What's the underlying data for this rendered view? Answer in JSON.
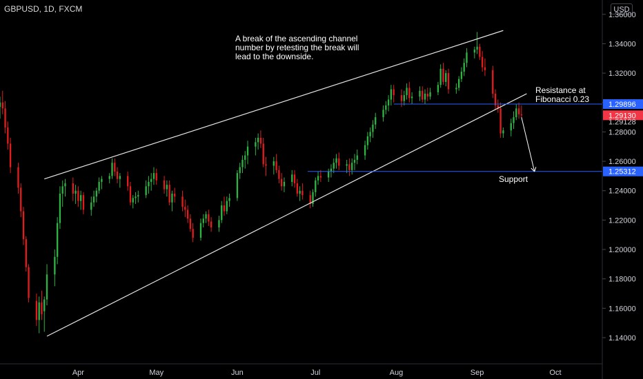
{
  "header": {
    "symbol": "GBPUSD, 1D, FXCM",
    "currency": "USD"
  },
  "chart_data": {
    "type": "candlestick",
    "x_tick_labels": [
      "Apr",
      "May",
      "Jun",
      "Jul",
      "Aug",
      "Sep",
      "Oct"
    ],
    "y_ticks": [
      1.14,
      1.16,
      1.18,
      1.2,
      1.22,
      1.24,
      1.26,
      1.28,
      1.3,
      1.32,
      1.34,
      1.36
    ],
    "y_tick_labels": [
      "1.14000",
      "1.16000",
      "1.18000",
      "1.20000",
      "1.22000",
      "1.24000",
      "1.26000",
      "1.28000",
      "1.30000",
      "1.32000",
      "1.34000",
      "1.36000"
    ],
    "ylim": [
      1.125,
      1.366
    ],
    "xlim": [
      "2020-03-02",
      "2020-10-19"
    ],
    "price_levels": [
      {
        "label": "1.29896",
        "value": 1.29896,
        "color": "#2962ff"
      },
      {
        "label": "1.29130",
        "value": 1.2913,
        "color": "#f23645"
      },
      {
        "label": "1.29128",
        "value": 1.29128,
        "color": ""
      },
      {
        "label": "1.25312",
        "value": 1.25312,
        "color": "#2962ff"
      }
    ],
    "lines": [
      {
        "name": "channel-top",
        "from": [
          "2020-03-19",
          1.248
        ],
        "to": [
          "2020-09-11",
          1.349
        ]
      },
      {
        "name": "channel-bottom",
        "from": [
          "2020-03-20",
          1.141
        ],
        "to": [
          "2020-09-20",
          1.306
        ]
      },
      {
        "name": "resistance",
        "from": [
          "2020-07-31",
          1.29896
        ],
        "to": [
          "2020-10-19",
          1.29896
        ]
      },
      {
        "name": "support",
        "from": [
          "2020-06-28",
          1.25312
        ],
        "to": [
          "2020-10-19",
          1.25312
        ]
      }
    ],
    "arrow": {
      "from": [
        "2020-09-18",
        1.29
      ],
      "to": [
        "2020-09-23",
        1.253
      ]
    },
    "annotations": [
      {
        "name": "channel-note",
        "text": "A break of the ascending channel\nnumber by retesting the break will\nlead to the downside."
      },
      {
        "name": "resistance-note",
        "text": "Resistance at\nFibonacci 0.23"
      },
      {
        "name": "support-note",
        "text": "Support"
      }
    ],
    "candles": [
      [
        "2020-03-02",
        1.297,
        1.304,
        1.289,
        1.3
      ],
      [
        "2020-03-03",
        1.3,
        1.308,
        1.292,
        1.296
      ],
      [
        "2020-03-04",
        1.296,
        1.301,
        1.279,
        1.283
      ],
      [
        "2020-03-05",
        1.283,
        1.287,
        1.268,
        1.272
      ],
      [
        "2020-03-06",
        1.272,
        1.276,
        1.252,
        1.256
      ],
      [
        "2020-03-09",
        1.256,
        1.259,
        1.238,
        1.242
      ],
      [
        "2020-03-10",
        1.242,
        1.245,
        1.222,
        1.226
      ],
      [
        "2020-03-11",
        1.226,
        1.229,
        1.203,
        1.207
      ],
      [
        "2020-03-12",
        1.207,
        1.209,
        1.185,
        1.188
      ],
      [
        "2020-03-13",
        1.188,
        1.19,
        1.164,
        1.167
      ],
      [
        "2020-03-16",
        1.165,
        1.17,
        1.148,
        1.152
      ],
      [
        "2020-03-17",
        1.152,
        1.168,
        1.143,
        1.164
      ],
      [
        "2020-03-18",
        1.164,
        1.172,
        1.152,
        1.156
      ],
      [
        "2020-03-19",
        1.158,
        1.168,
        1.144,
        1.166
      ],
      [
        "2020-03-20",
        1.166,
        1.19,
        1.162,
        1.183
      ],
      [
        "2020-03-23",
        1.183,
        1.2,
        1.175,
        1.195
      ],
      [
        "2020-03-24",
        1.195,
        1.222,
        1.19,
        1.218
      ],
      [
        "2020-03-25",
        1.218,
        1.243,
        1.214,
        1.238
      ],
      [
        "2020-03-26",
        1.238,
        1.247,
        1.229,
        1.243
      ],
      [
        "2020-03-27",
        1.243,
        1.248,
        1.236,
        1.245
      ],
      [
        "2020-03-30",
        1.245,
        1.249,
        1.233,
        1.238
      ],
      [
        "2020-03-31",
        1.238,
        1.244,
        1.231,
        1.24
      ],
      [
        "2020-04-01",
        1.24,
        1.243,
        1.229,
        1.233
      ],
      [
        "2020-04-02",
        1.233,
        1.24,
        1.227,
        1.237
      ],
      [
        "2020-04-03",
        1.237,
        1.239,
        1.224,
        1.227
      ],
      [
        "2020-04-06",
        1.227,
        1.236,
        1.223,
        1.232
      ],
      [
        "2020-04-07",
        1.232,
        1.24,
        1.229,
        1.236
      ],
      [
        "2020-04-08",
        1.236,
        1.242,
        1.232,
        1.24
      ],
      [
        "2020-04-09",
        1.24,
        1.249,
        1.238,
        1.246
      ],
      [
        "2020-04-10",
        1.246,
        1.25,
        1.241,
        1.248
      ],
      [
        "2020-04-13",
        1.248,
        1.252,
        1.245,
        1.25
      ],
      [
        "2020-04-14",
        1.25,
        1.262,
        1.248,
        1.259
      ],
      [
        "2020-04-15",
        1.259,
        1.262,
        1.25,
        1.253
      ],
      [
        "2020-04-16",
        1.253,
        1.256,
        1.245,
        1.248
      ],
      [
        "2020-04-17",
        1.248,
        1.252,
        1.242,
        1.25
      ],
      [
        "2020-04-20",
        1.25,
        1.253,
        1.24,
        1.243
      ],
      [
        "2020-04-21",
        1.243,
        1.246,
        1.23,
        1.232
      ],
      [
        "2020-04-22",
        1.232,
        1.237,
        1.228,
        1.235
      ],
      [
        "2020-04-23",
        1.235,
        1.239,
        1.231,
        1.236
      ],
      [
        "2020-04-24",
        1.236,
        1.24,
        1.232,
        1.237
      ],
      [
        "2020-04-27",
        1.237,
        1.247,
        1.235,
        1.243
      ],
      [
        "2020-04-28",
        1.243,
        1.25,
        1.238,
        1.246
      ],
      [
        "2020-04-29",
        1.246,
        1.252,
        1.24,
        1.248
      ],
      [
        "2020-04-30",
        1.248,
        1.256,
        1.244,
        1.252
      ],
      [
        "2020-05-01",
        1.252,
        1.255,
        1.244,
        1.247
      ],
      [
        "2020-05-04",
        1.247,
        1.25,
        1.238,
        1.241
      ],
      [
        "2020-05-05",
        1.241,
        1.247,
        1.236,
        1.244
      ],
      [
        "2020-05-06",
        1.244,
        1.247,
        1.23,
        1.232
      ],
      [
        "2020-05-07",
        1.232,
        1.24,
        1.226,
        1.238
      ],
      [
        "2020-05-08",
        1.238,
        1.242,
        1.232,
        1.236
      ],
      [
        "2020-05-11",
        1.236,
        1.24,
        1.226,
        1.229
      ],
      [
        "2020-05-12",
        1.229,
        1.234,
        1.222,
        1.227
      ],
      [
        "2020-05-13",
        1.227,
        1.23,
        1.218,
        1.221
      ],
      [
        "2020-05-14",
        1.221,
        1.224,
        1.212,
        1.214
      ],
      [
        "2020-05-15",
        1.214,
        1.218,
        1.205,
        1.208
      ],
      [
        "2020-05-18",
        1.208,
        1.221,
        1.206,
        1.218
      ],
      [
        "2020-05-19",
        1.218,
        1.224,
        1.215,
        1.221
      ],
      [
        "2020-05-20",
        1.221,
        1.226,
        1.218,
        1.224
      ],
      [
        "2020-05-21",
        1.224,
        1.227,
        1.216,
        1.219
      ],
      [
        "2020-05-22",
        1.219,
        1.222,
        1.212,
        1.215
      ],
      [
        "2020-05-25",
        1.215,
        1.223,
        1.212,
        1.22
      ],
      [
        "2020-05-26",
        1.22,
        1.233,
        1.218,
        1.23
      ],
      [
        "2020-05-27",
        1.23,
        1.236,
        1.223,
        1.226
      ],
      [
        "2020-05-28",
        1.226,
        1.236,
        1.224,
        1.233
      ],
      [
        "2020-05-29",
        1.233,
        1.238,
        1.229,
        1.235
      ],
      [
        "2020-06-01",
        1.235,
        1.254,
        1.233,
        1.252
      ],
      [
        "2020-06-02",
        1.252,
        1.259,
        1.248,
        1.256
      ],
      [
        "2020-06-03",
        1.256,
        1.264,
        1.252,
        1.261
      ],
      [
        "2020-06-04",
        1.261,
        1.267,
        1.255,
        1.264
      ],
      [
        "2020-06-05",
        1.264,
        1.274,
        1.258,
        1.27
      ],
      [
        "2020-06-08",
        1.27,
        1.276,
        1.264,
        1.273
      ],
      [
        "2020-06-09",
        1.273,
        1.279,
        1.268,
        1.276
      ],
      [
        "2020-06-10",
        1.276,
        1.281,
        1.269,
        1.272
      ],
      [
        "2020-06-11",
        1.272,
        1.276,
        1.256,
        1.258
      ],
      [
        "2020-06-12",
        1.258,
        1.263,
        1.25,
        1.257
      ],
      [
        "2020-06-15",
        1.257,
        1.263,
        1.251,
        1.26
      ],
      [
        "2020-06-16",
        1.26,
        1.265,
        1.252,
        1.254
      ],
      [
        "2020-06-17",
        1.254,
        1.257,
        1.245,
        1.248
      ],
      [
        "2020-06-18",
        1.248,
        1.252,
        1.24,
        1.243
      ],
      [
        "2020-06-19",
        1.243,
        1.249,
        1.239,
        1.246
      ],
      [
        "2020-06-22",
        1.246,
        1.254,
        1.243,
        1.251
      ],
      [
        "2020-06-23",
        1.251,
        1.254,
        1.242,
        1.245
      ],
      [
        "2020-06-24",
        1.245,
        1.248,
        1.236,
        1.238
      ],
      [
        "2020-06-25",
        1.238,
        1.243,
        1.233,
        1.24
      ],
      [
        "2020-06-26",
        1.24,
        1.245,
        1.234,
        1.237
      ],
      [
        "2020-06-29",
        1.237,
        1.24,
        1.228,
        1.231
      ],
      [
        "2020-06-30",
        1.231,
        1.241,
        1.229,
        1.239
      ],
      [
        "2020-07-01",
        1.239,
        1.249,
        1.236,
        1.247
      ],
      [
        "2020-07-02",
        1.247,
        1.253,
        1.244,
        1.25
      ],
      [
        "2020-07-03",
        1.25,
        1.254,
        1.246,
        1.249
      ],
      [
        "2020-07-06",
        1.249,
        1.255,
        1.246,
        1.253
      ],
      [
        "2020-07-07",
        1.253,
        1.258,
        1.249,
        1.255
      ],
      [
        "2020-07-08",
        1.255,
        1.262,
        1.252,
        1.259
      ],
      [
        "2020-07-09",
        1.259,
        1.265,
        1.255,
        1.262
      ],
      [
        "2020-07-10",
        1.262,
        1.266,
        1.254,
        1.257
      ],
      [
        "2020-07-13",
        1.257,
        1.261,
        1.252,
        1.258
      ],
      [
        "2020-07-14",
        1.258,
        1.262,
        1.25,
        1.254
      ],
      [
        "2020-07-15",
        1.254,
        1.262,
        1.251,
        1.259
      ],
      [
        "2020-07-16",
        1.259,
        1.265,
        1.254,
        1.261
      ],
      [
        "2020-07-17",
        1.261,
        1.268,
        1.258,
        1.264
      ],
      [
        "2020-07-20",
        1.264,
        1.274,
        1.261,
        1.271
      ],
      [
        "2020-07-21",
        1.271,
        1.28,
        1.268,
        1.277
      ],
      [
        "2020-07-22",
        1.277,
        1.283,
        1.273,
        1.28
      ],
      [
        "2020-07-23",
        1.28,
        1.288,
        1.276,
        1.285
      ],
      [
        "2020-07-24",
        1.285,
        1.293,
        1.282,
        1.29
      ],
      [
        "2020-07-27",
        1.29,
        1.298,
        1.287,
        1.295
      ],
      [
        "2020-07-28",
        1.295,
        1.301,
        1.292,
        1.298
      ],
      [
        "2020-07-29",
        1.298,
        1.305,
        1.294,
        1.302
      ],
      [
        "2020-07-30",
        1.302,
        1.312,
        1.298,
        1.309
      ],
      [
        "2020-07-31",
        1.309,
        1.312,
        1.3,
        1.305
      ],
      [
        "2020-08-03",
        1.305,
        1.309,
        1.297,
        1.301
      ],
      [
        "2020-08-04",
        1.301,
        1.308,
        1.298,
        1.305
      ],
      [
        "2020-08-05",
        1.305,
        1.313,
        1.302,
        1.31
      ],
      [
        "2020-08-06",
        1.31,
        1.314,
        1.3,
        1.303
      ],
      [
        "2020-08-07",
        1.303,
        1.307,
        1.299,
        1.304
      ],
      [
        "2020-08-10",
        1.304,
        1.311,
        1.301,
        1.308
      ],
      [
        "2020-08-11",
        1.308,
        1.311,
        1.3,
        1.302
      ],
      [
        "2020-08-12",
        1.302,
        1.309,
        1.299,
        1.306
      ],
      [
        "2020-08-13",
        1.306,
        1.31,
        1.301,
        1.304
      ],
      [
        "2020-08-14",
        1.304,
        1.31,
        1.302,
        1.307
      ],
      [
        "2020-08-17",
        1.307,
        1.314,
        1.305,
        1.312
      ],
      [
        "2020-08-18",
        1.312,
        1.326,
        1.31,
        1.323
      ],
      [
        "2020-08-19",
        1.323,
        1.327,
        1.312,
        1.314
      ],
      [
        "2020-08-20",
        1.314,
        1.322,
        1.311,
        1.32
      ],
      [
        "2020-08-21",
        1.32,
        1.323,
        1.306,
        1.309
      ],
      [
        "2020-08-24",
        1.309,
        1.313,
        1.306,
        1.31
      ],
      [
        "2020-08-25",
        1.31,
        1.318,
        1.308,
        1.316
      ],
      [
        "2020-08-26",
        1.316,
        1.324,
        1.314,
        1.321
      ],
      [
        "2020-08-27",
        1.321,
        1.33,
        1.318,
        1.327
      ],
      [
        "2020-08-28",
        1.327,
        1.337,
        1.324,
        1.334
      ],
      [
        "2020-08-31",
        1.334,
        1.338,
        1.33,
        1.336
      ],
      [
        "2020-09-01",
        1.336,
        1.348,
        1.333,
        1.338
      ],
      [
        "2020-09-02",
        1.338,
        1.34,
        1.329,
        1.331
      ],
      [
        "2020-09-03",
        1.331,
        1.335,
        1.321,
        1.324
      ],
      [
        "2020-09-04",
        1.324,
        1.33,
        1.318,
        1.322
      ],
      [
        "2020-09-07",
        1.322,
        1.325,
        1.303,
        1.306
      ],
      [
        "2020-09-08",
        1.306,
        1.309,
        1.295,
        1.298
      ],
      [
        "2020-09-09",
        1.298,
        1.302,
        1.293,
        1.296
      ],
      [
        "2020-09-10",
        1.296,
        1.3,
        1.276,
        1.279
      ],
      [
        "2020-09-11",
        1.279,
        1.283,
        1.276,
        1.281
      ],
      [
        "2020-09-14",
        1.281,
        1.289,
        1.277,
        1.286
      ],
      [
        "2020-09-15",
        1.286,
        1.294,
        1.282,
        1.29
      ],
      [
        "2020-09-16",
        1.29,
        1.299,
        1.288,
        1.296
      ],
      [
        "2020-09-17",
        1.296,
        1.3,
        1.289,
        1.292
      ],
      [
        "2020-09-18",
        1.292,
        1.298,
        1.29,
        1.2913
      ]
    ]
  }
}
